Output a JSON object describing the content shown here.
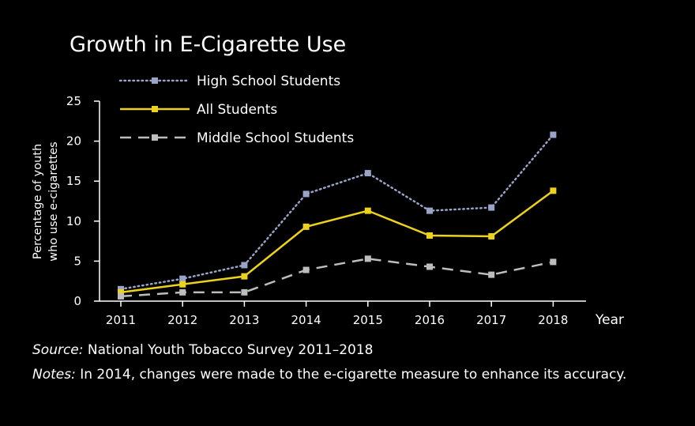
{
  "chart_data": {
    "type": "line",
    "title": "Growth in E-Cigarette Use",
    "xlabel": "Year",
    "ylabel_line1": "Percentage of youth",
    "ylabel_line2": "who use e-cigarettes",
    "x": [
      "2011",
      "2012",
      "2013",
      "2014",
      "2015",
      "2016",
      "2017",
      "2018"
    ],
    "ylim": [
      0,
      25
    ],
    "yticks": [
      "0",
      "5",
      "10",
      "15",
      "20",
      "25"
    ],
    "grid": false,
    "legend_placement": "top-left",
    "series": [
      {
        "name": "High School Students",
        "values": [
          1.5,
          2.8,
          4.5,
          13.4,
          16.0,
          11.3,
          11.7,
          20.8
        ],
        "color": "#9aa3c8",
        "style": "dotted"
      },
      {
        "name": "All Students",
        "values": [
          1.1,
          2.1,
          3.1,
          9.3,
          11.3,
          8.2,
          8.1,
          13.8
        ],
        "color": "#ecd21c",
        "style": "solid"
      },
      {
        "name": "Middle School Students",
        "values": [
          0.6,
          1.1,
          1.1,
          3.9,
          5.3,
          4.3,
          3.3,
          4.9
        ],
        "color": "#bdbdbd",
        "style": "dashed"
      }
    ]
  },
  "footer": {
    "source_label": "Source:",
    "source_text": " National Youth Tobacco Survey 2011–2018",
    "notes_label": "Notes:",
    "notes_text": " In 2014, changes were made to the e-cigarette measure to enhance its accuracy."
  }
}
